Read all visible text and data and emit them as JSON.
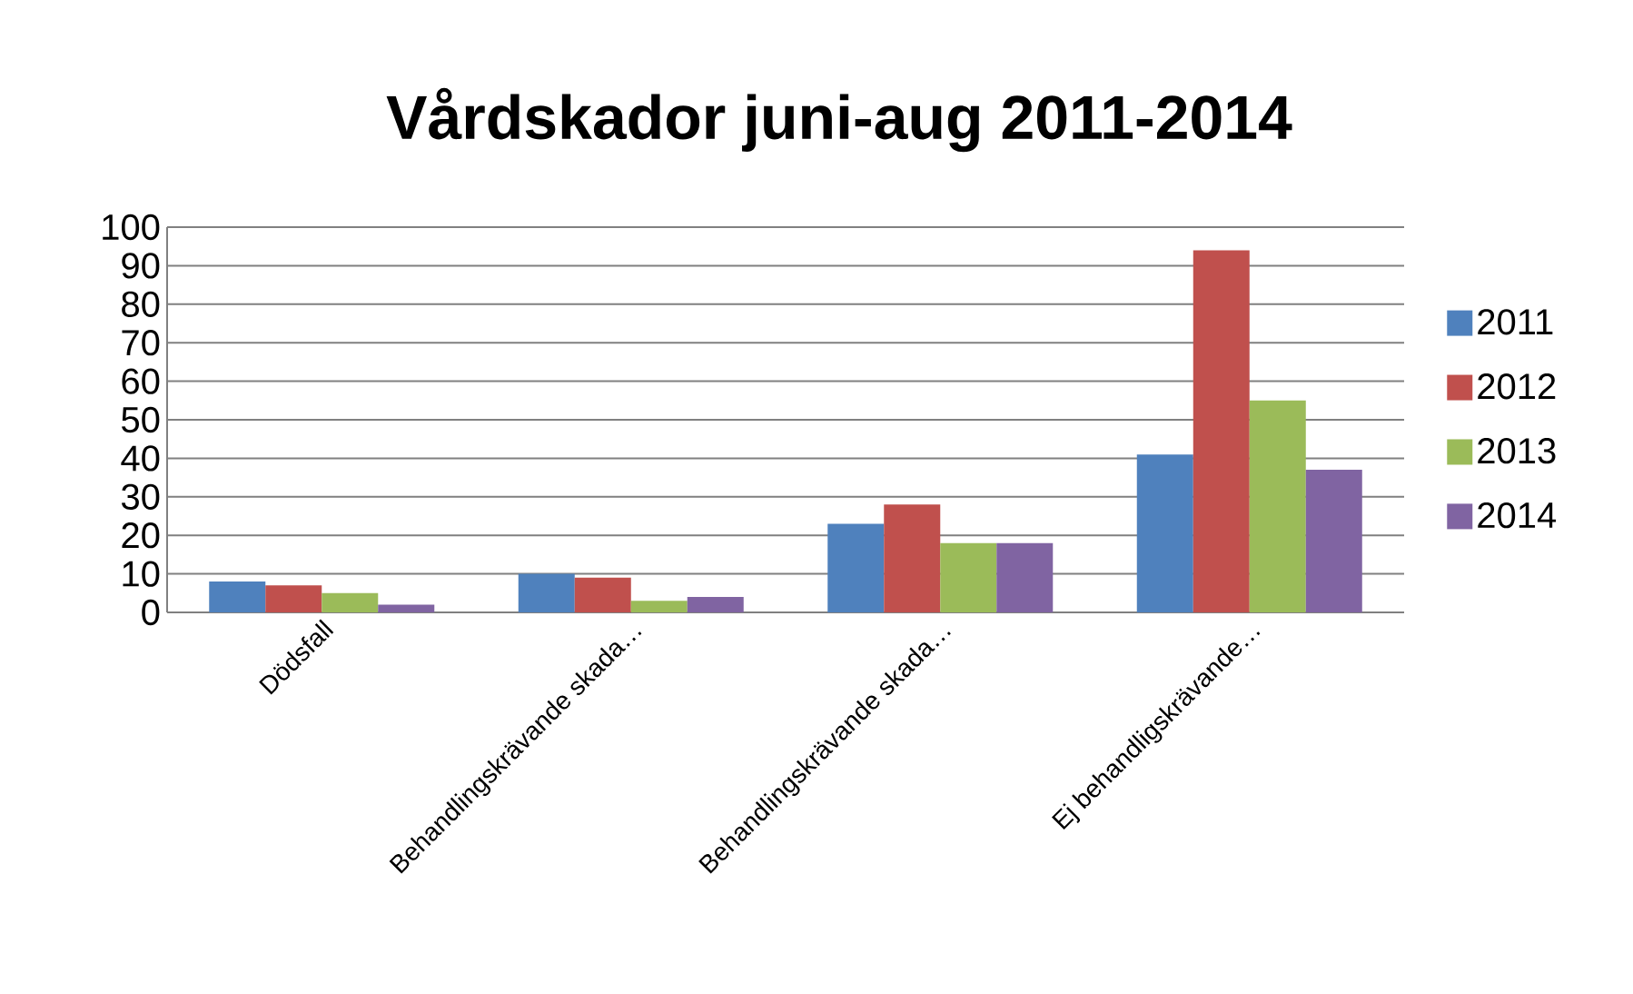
{
  "chart_data": {
    "type": "bar",
    "title": "Vårdskador juni-aug 2011-2014",
    "categories": [
      "Dödsfall",
      "Behandlingskrävande skada…",
      "Behandlingskrävande skada…",
      "Ej behandligskrävande…"
    ],
    "series": [
      {
        "name": "2011",
        "color": "#4f81bd",
        "values": [
          8,
          10,
          23,
          41
        ]
      },
      {
        "name": "2012",
        "color": "#c0504d",
        "values": [
          7,
          9,
          28,
          94
        ]
      },
      {
        "name": "2013",
        "color": "#9bbb59",
        "values": [
          5,
          3,
          18,
          55
        ]
      },
      {
        "name": "2014",
        "color": "#8064a2",
        "values": [
          2,
          4,
          18,
          37
        ]
      }
    ],
    "ylim": [
      0,
      100
    ],
    "yticks": [
      0,
      10,
      20,
      30,
      40,
      50,
      60,
      70,
      80,
      90,
      100
    ],
    "grid": "y",
    "legend": "right"
  }
}
